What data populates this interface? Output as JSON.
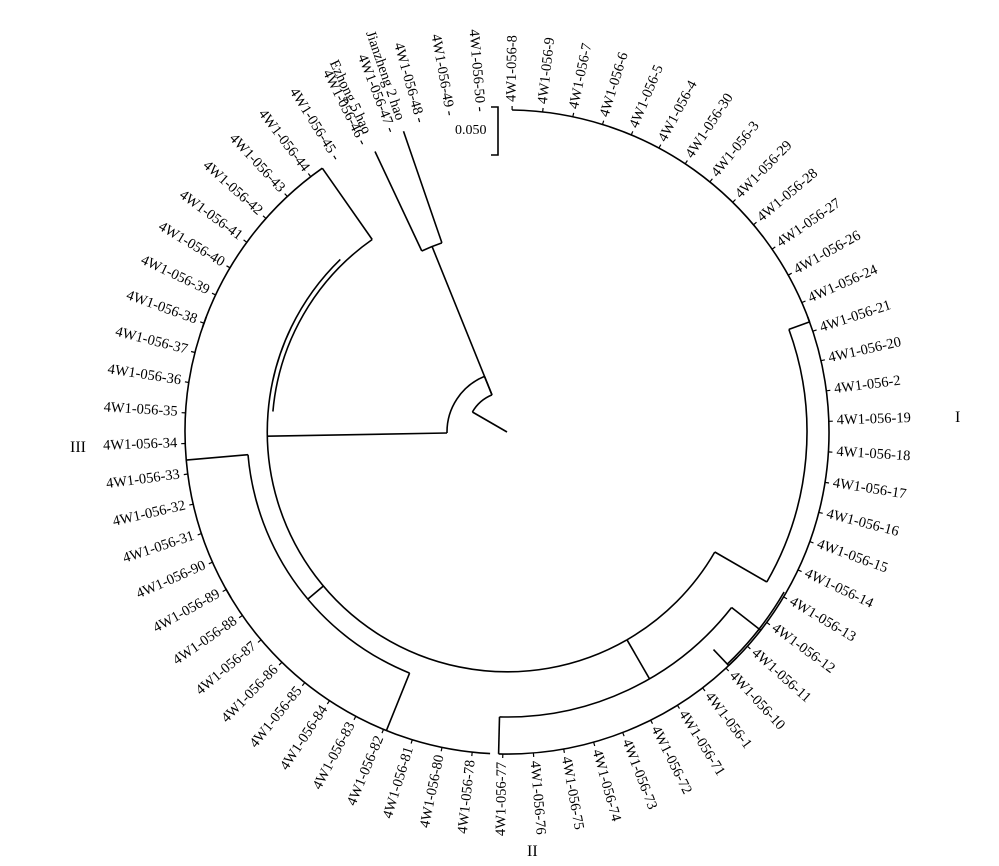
{
  "tree": {
    "scale_bar_label": "0.050",
    "cluster_labels": {
      "cluster_1": "I",
      "cluster_2": "II",
      "cluster_3": "III"
    },
    "leaves": [
      "4W1-056-8",
      "4W1-056-9",
      "4W1-056-7",
      "4W1-056-6",
      "4W1-056-5",
      "4W1-056-4",
      "4W1-056-30",
      "4W1-056-3",
      "4W1-056-29",
      "4W1-056-28",
      "4W1-056-27",
      "4W1-056-26",
      "4W1-056-24",
      "4W1-056-21",
      "4W1-056-20",
      "4W1-056-2",
      "4W1-056-19",
      "4W1-056-18",
      "4W1-056-17",
      "4W1-056-16",
      "4W1-056-15",
      "4W1-056-14",
      "4W1-056-13",
      "4W1-056-12",
      "4W1-056-11",
      "4W1-056-10",
      "4W1-056-1",
      "4W1-056-71",
      "4W1-056-72",
      "4W1-056-73",
      "4W1-056-74",
      "4W1-056-75",
      "4W1-056-76",
      "4W1-056-77",
      "4W1-056-78",
      "4W1-056-80",
      "4W1-056-81",
      "4W1-056-82",
      "4W1-056-83",
      "4W1-056-84",
      "4W1-056-85",
      "4W1-056-86",
      "4W1-056-87",
      "4W1-056-88",
      "4W1-056-89",
      "4W1-056-90",
      "4W1-056-31",
      "4W1-056-32",
      "4W1-056-33",
      "4W1-056-34",
      "4W1-056-35",
      "4W1-056-36",
      "4W1-056-37",
      "4W1-056-38",
      "4W1-056-39",
      "4W1-056-40",
      "4W1-056-41",
      "4W1-056-42",
      "4W1-056-43",
      "4W1-056-44",
      "4W1-056-45",
      "4W1-056-46",
      "4W1-056-47",
      "4W1-056-48",
      "4W1-056-49",
      "4W1-056-50",
      "Ezhong 5 hao",
      "Jianzheng 2 hao"
    ]
  }
}
